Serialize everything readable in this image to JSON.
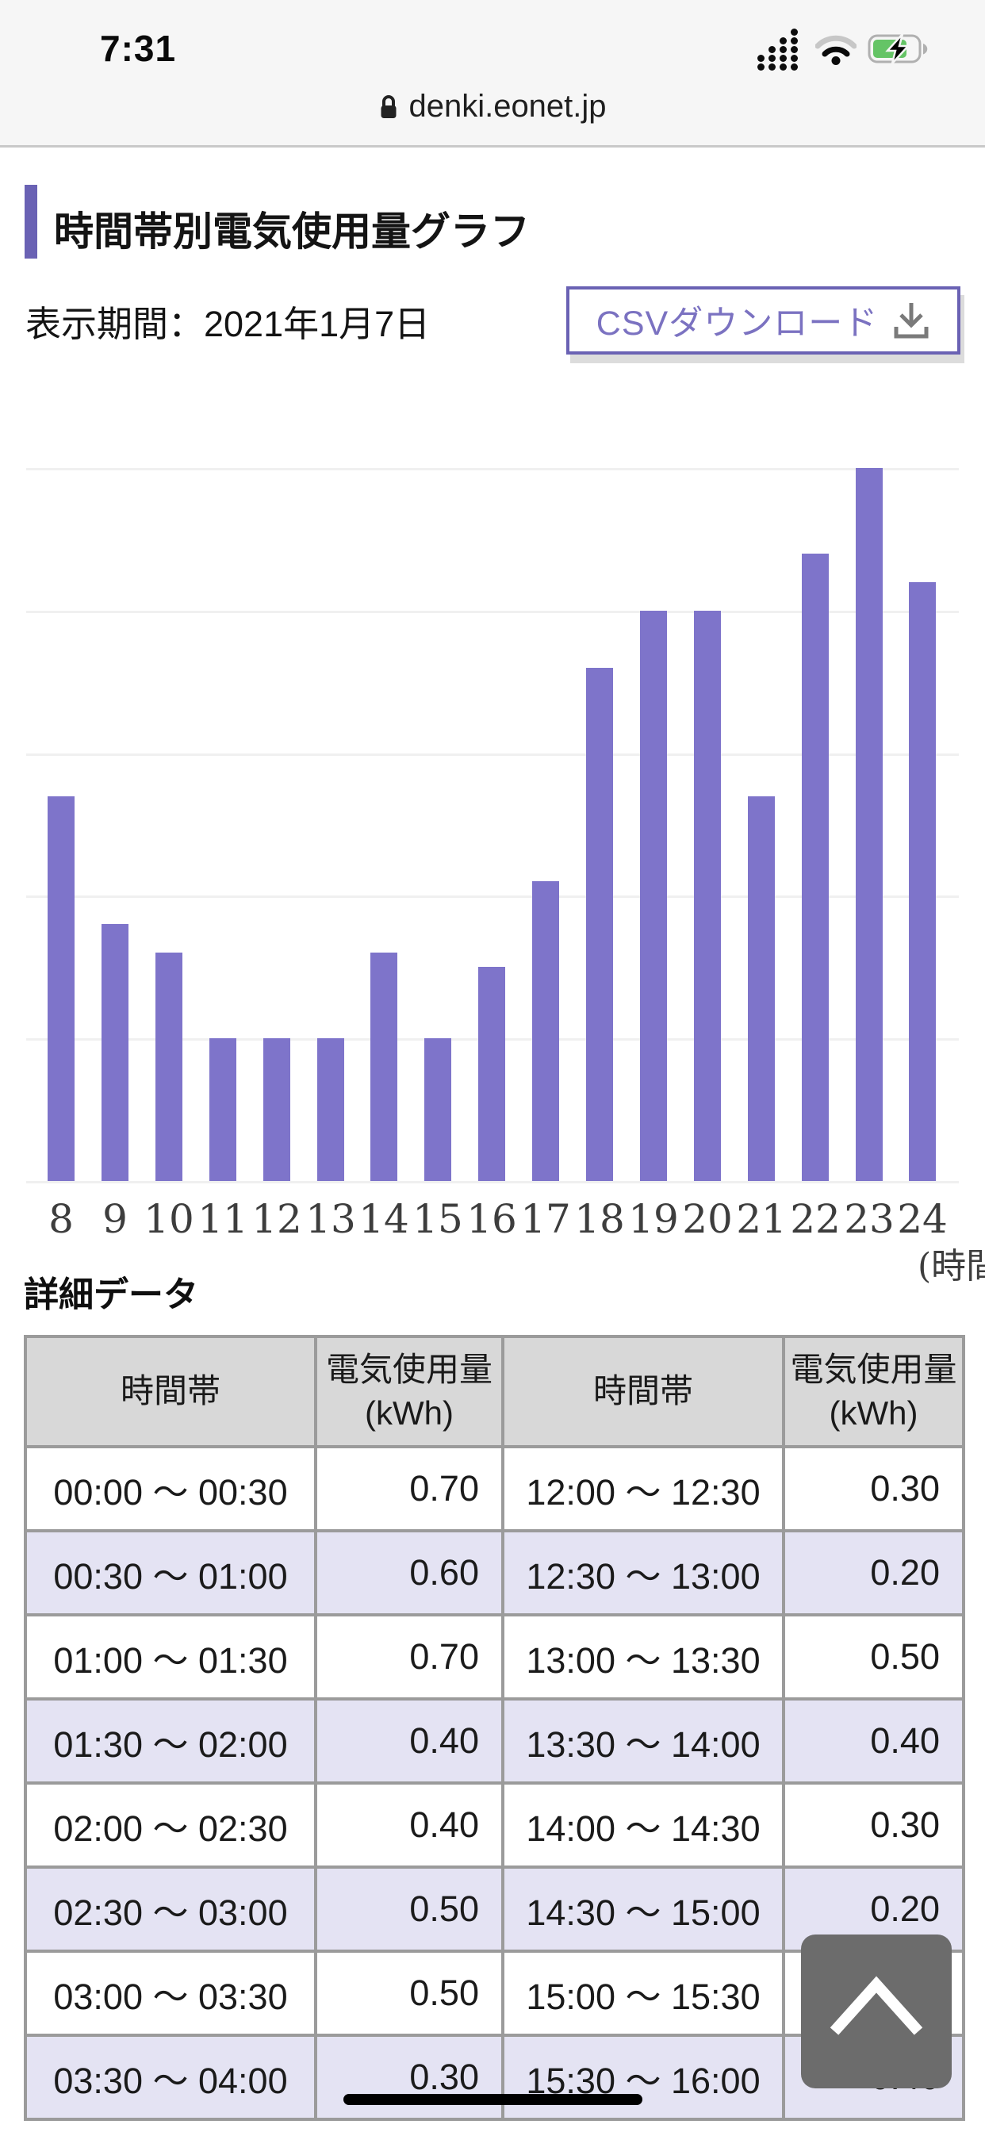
{
  "status_bar": {
    "time": "7:31",
    "icons": [
      "cellular-signal-icon",
      "wifi-icon",
      "battery-charging-icon"
    ]
  },
  "url_bar": {
    "lock_icon": "lock-icon",
    "domain": "denki.eonet.jp"
  },
  "page": {
    "title": "時間帯別電気使用量グラフ",
    "period_label": "表示期間：2021年1月7日",
    "csv_button_label": "CSVダウンロード",
    "csv_button_icon": "download-icon",
    "detail_heading": "詳細データ"
  },
  "chart_data": {
    "type": "bar",
    "title": "時間帯別電気使用量グラフ",
    "categories": [
      8,
      9,
      10,
      11,
      12,
      13,
      14,
      15,
      16,
      17,
      18,
      19,
      20,
      21,
      22,
      23,
      24
    ],
    "values": [
      1.35,
      0.9,
      0.8,
      0.5,
      0.5,
      0.5,
      0.8,
      0.5,
      0.75,
      1.05,
      1.8,
      2.0,
      2.0,
      1.35,
      2.2,
      2.5,
      2.1
    ],
    "xlabel": "(時間",
    "ylabel": "",
    "ylim": [
      0,
      2.5
    ],
    "gridline_step": 0.5,
    "grid": true,
    "legend": false,
    "y_axis_labels_visible": false,
    "bar_color": "#7e74ca"
  },
  "table": {
    "headers": [
      "時間帯",
      "電気使用量\n(kWh)",
      "時間帯",
      "電気使用量\n(kWh)"
    ],
    "rows": [
      [
        "00:00 〜 00:30",
        "0.70",
        "12:00 〜 12:30",
        "0.30"
      ],
      [
        "00:30 〜 01:00",
        "0.60",
        "12:30 〜 13:00",
        "0.20"
      ],
      [
        "01:00 〜 01:30",
        "0.70",
        "13:00 〜 13:30",
        "0.50"
      ],
      [
        "01:30 〜 02:00",
        "0.40",
        "13:30 〜 14:00",
        "0.40"
      ],
      [
        "02:00 〜 02:30",
        "0.40",
        "14:00 〜 14:30",
        "0.30"
      ],
      [
        "02:30 〜 03:00",
        "0.50",
        "14:30 〜 15:00",
        "0.20"
      ],
      [
        "03:00 〜 03:30",
        "0.50",
        "15:00 〜 15:30",
        ""
      ],
      [
        "03:30 〜 04:00",
        "0.30",
        "15:30 〜 16:00",
        "0.40"
      ]
    ]
  },
  "floating": {
    "scroll_top_icon": "chevron-up-icon"
  },
  "colors": {
    "accent_purple": "#6a62b4",
    "bar_purple": "#7e74ca",
    "csv_text": "#7b72c1",
    "row_alt": "#e4e3f3",
    "header_bg": "#d8d8d8",
    "battery_green": "#65c466",
    "gridline": "#f0f0f0"
  }
}
